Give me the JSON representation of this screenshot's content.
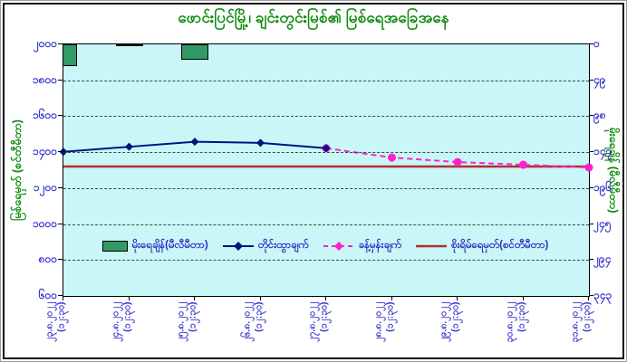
{
  "title": "ဖောင်းပြင်မြို့၊ ချင်းတွင်းမြစ်၏ မြစ်ရေအခြေအနေ",
  "colors": {
    "title_green": "#0b8a0b",
    "axis_label_blue": "#3434cf",
    "plot_background_cyan": "#c9f6f7",
    "rain_bar_green": "#339966",
    "observed_line_navy": "#00137f",
    "forecast_line_magenta": "#ff22cc",
    "danger_line_red": "#b22f2f"
  },
  "chart_data": {
    "type": "bar",
    "combo": "bars (rainfall, right reversed axis) + lines (water level, left axis)",
    "title": "ဖောင်းပြင်မြို့၊ ချင်းတွင်းမြစ်၏ မြစ်ရေအခြေအနေ",
    "categories": [
      "၂၃.၈.၂၀၂၂",
      "၂၄.၈.၂၀၂၂",
      "၂၅.၈.၂၀၂၂",
      "၂၆.၈.၂၀၂၂",
      "၂၇.၈.၂၀၂၂",
      "၂၈.၈.၂၀၂၂",
      "၂၉.၈.၂၀၂၂",
      "၃၀.၈.၂၀၂၂",
      "၃၁.၈.၂၀၂၂"
    ],
    "category_time_suffix": "(၁၂:၃၀)",
    "left_axis": {
      "label": "မြစ်ရေမှတ် (စင်တီမီတာ)",
      "tick_labels": [
        "၂၀၀၀",
        "၁၈၀၀",
        "၁၆၀၀",
        "၁၄၀၀",
        "၁၂၀၀",
        "၁၀၀၀",
        "၈၀၀",
        "၆၀၀"
      ],
      "tick_values": [
        2000,
        1800,
        1600,
        1400,
        1200,
        1000,
        800,
        600
      ],
      "range": [
        600,
        2000
      ],
      "grid": true
    },
    "right_axis": {
      "label": "မိုးရေချိန် (မီလီမီတာ)",
      "tick_labels": [
        "၀",
        "၄၉",
        "၉၈",
        "၁၄၇",
        "၁၉၆",
        "၂၄၅",
        "၂၉၄",
        "၃၄၃"
      ],
      "tick_values": [
        0,
        49,
        98,
        147,
        196,
        245,
        294,
        343
      ],
      "range": [
        0,
        343
      ],
      "reversed": true
    },
    "series": [
      {
        "name": "မိုးရေချိန်(မီလီမီတာ)",
        "type": "bar",
        "axis": "right",
        "color": "#339966",
        "values": [
          30,
          2,
          21,
          0,
          0,
          0,
          0,
          0,
          0
        ]
      },
      {
        "name": "တိုင်းထွာချက်",
        "type": "line",
        "axis": "left",
        "color": "#00137f",
        "marker": "diamond",
        "values": [
          1402,
          1430,
          1458,
          1452,
          1422,
          null,
          null,
          null,
          null
        ]
      },
      {
        "name": "ခန့်မှန်းချက်",
        "type": "line",
        "dashed": true,
        "axis": "left",
        "color": "#ff22cc",
        "marker": "circle",
        "values": [
          null,
          null,
          null,
          null,
          1422,
          1370,
          1345,
          1330,
          1315
        ]
      },
      {
        "name": "စိုးရိမ်ရေမှတ်(စင်တီမီတာ)",
        "type": "line",
        "axis": "left",
        "color": "#b22f2f",
        "constant_value": 1320
      }
    ],
    "legend_position": "inside-bottom-center"
  }
}
